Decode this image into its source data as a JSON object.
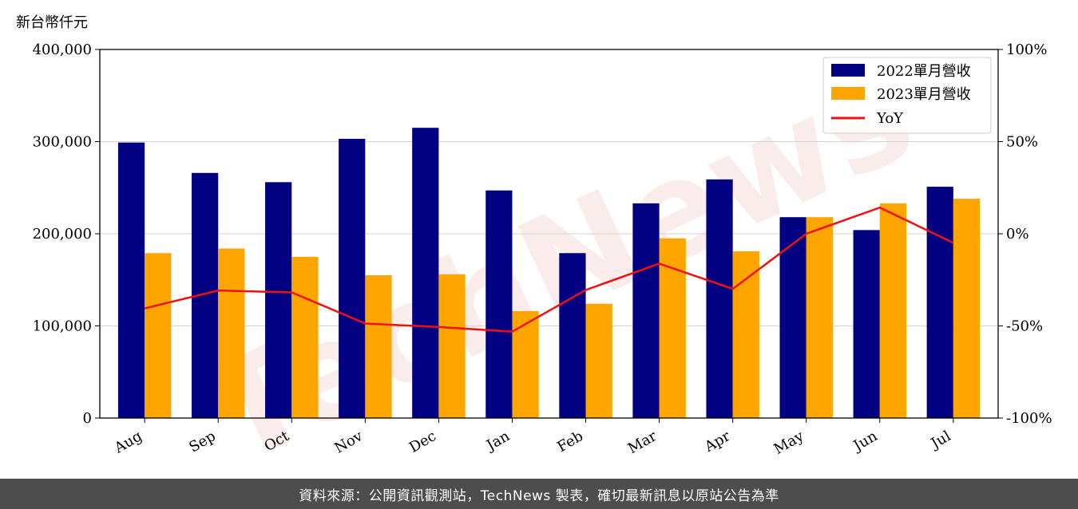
{
  "colors": {
    "series_2022": "#000080",
    "series_2023": "#ffa500",
    "yoy_line": "#ee1111",
    "grid": "#d3d3d3",
    "footer_bg": "#4d4d4d",
    "watermark": "#f2b8b8"
  },
  "watermark_text": "TechNews",
  "footer_text": "資料來源：公開資訊觀測站，TechNews 製表，確切最新訊息以原站公告為準",
  "chart_data": {
    "type": "bar",
    "ylabel": "新台幣仟元",
    "categories": [
      "Aug",
      "Sep",
      "Oct",
      "Nov",
      "Dec",
      "Jan",
      "Feb",
      "Mar",
      "Apr",
      "May",
      "Jun",
      "Jul"
    ],
    "series": [
      {
        "name": "2022單月營收",
        "type": "bar",
        "axis": "left",
        "values": [
          299000,
          266000,
          256000,
          303000,
          315000,
          247000,
          179000,
          233000,
          259000,
          218000,
          204000,
          251000
        ]
      },
      {
        "name": "2023單月營收",
        "type": "bar",
        "axis": "left",
        "values": [
          179000,
          184000,
          175000,
          155000,
          156000,
          116000,
          124000,
          195000,
          181000,
          218000,
          233000,
          238000
        ]
      },
      {
        "name": "YoY",
        "type": "line",
        "axis": "right",
        "values": [
          -40.5,
          -30.8,
          -31.8,
          -48.7,
          -50.6,
          -53.1,
          -30.5,
          -16.2,
          -29.9,
          0.0,
          14.2,
          -4.9
        ]
      }
    ],
    "ylim": [
      0,
      400000
    ],
    "yticks": [
      "0",
      "100,000",
      "200,000",
      "300,000",
      "400,000"
    ],
    "y2lim": [
      -100,
      100
    ],
    "y2ticks": [
      "-100%",
      "-50%",
      "0%",
      "50%",
      "100%"
    ],
    "grid": "horizontal",
    "legend_position": "top-right"
  }
}
